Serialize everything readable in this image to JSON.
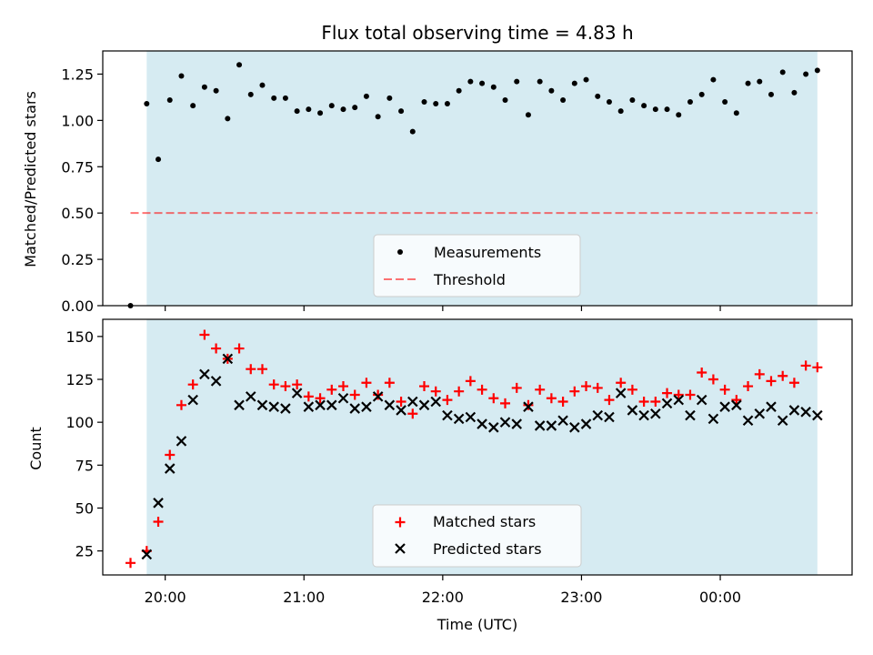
{
  "chart_data": [
    {
      "type": "scatter",
      "title": "Flux total observing time = 4.83 h",
      "xlabel": "",
      "ylabel": "Matched/Predicted stars",
      "ylim": [
        0,
        1.375
      ],
      "yticks": [
        "0.00",
        "0.25",
        "0.50",
        "0.75",
        "1.00",
        "1.25"
      ],
      "shaded_span": {
        "x_start": "19:52",
        "x_end": "00:42",
        "color": "#add8e6"
      },
      "threshold": {
        "name": "Threshold",
        "value": 0.5,
        "x_start": "19:45",
        "x_end": "00:42",
        "color": "#ff0000"
      },
      "legend": {
        "position": "lower center",
        "entries": [
          "Measurements",
          "Threshold"
        ]
      },
      "series": [
        {
          "name": "Measurements",
          "color": "#000000",
          "marker": "dot",
          "x": [
            "19:45",
            "19:52",
            "19:57",
            "20:02",
            "20:07",
            "20:12",
            "20:17",
            "20:22",
            "20:27",
            "20:32",
            "20:37",
            "20:42",
            "20:47",
            "20:52",
            "20:57",
            "21:02",
            "21:07",
            "21:12",
            "21:17",
            "21:22",
            "21:27",
            "21:32",
            "21:37",
            "21:42",
            "21:47",
            "21:52",
            "21:57",
            "22:02",
            "22:07",
            "22:12",
            "22:17",
            "22:22",
            "22:27",
            "22:32",
            "22:37",
            "22:42",
            "22:47",
            "22:52",
            "22:57",
            "23:02",
            "23:07",
            "23:12",
            "23:17",
            "23:22",
            "23:27",
            "23:32",
            "23:37",
            "23:42",
            "23:47",
            "23:52",
            "23:57",
            "00:02",
            "00:07",
            "00:12",
            "00:17",
            "00:22",
            "00:27",
            "00:32",
            "00:37",
            "00:42"
          ],
          "y": [
            0.0,
            1.09,
            0.79,
            1.11,
            1.24,
            1.08,
            1.18,
            1.16,
            1.01,
            1.3,
            1.14,
            1.19,
            1.12,
            1.12,
            1.05,
            1.06,
            1.04,
            1.08,
            1.06,
            1.07,
            1.13,
            1.02,
            1.12,
            1.05,
            0.94,
            1.1,
            1.09,
            1.09,
            1.16,
            1.21,
            1.2,
            1.18,
            1.11,
            1.21,
            1.03,
            1.21,
            1.16,
            1.11,
            1.2,
            1.22,
            1.13,
            1.1,
            1.05,
            1.11,
            1.08,
            1.06,
            1.06,
            1.03,
            1.1,
            1.14,
            1.22,
            1.1,
            1.04,
            1.2,
            1.21,
            1.14,
            1.26,
            1.15,
            1.25,
            1.27
          ]
        }
      ]
    },
    {
      "type": "scatter",
      "title": "",
      "xlabel": "Time (UTC)",
      "ylabel": "Count",
      "ylim": [
        11,
        160
      ],
      "yticks": [
        "25",
        "50",
        "75",
        "100",
        "125",
        "150"
      ],
      "xticks": [
        "20:00",
        "21:00",
        "22:00",
        "23:00",
        "00:00"
      ],
      "xlim": [
        "19:33",
        "00:57"
      ],
      "legend": {
        "position": "lower center",
        "entries": [
          "Matched stars",
          "Predicted stars"
        ]
      },
      "series": [
        {
          "name": "Matched stars",
          "color": "#ff0000",
          "marker": "plus",
          "x": [
            "19:45",
            "19:52",
            "19:57",
            "20:02",
            "20:07",
            "20:12",
            "20:17",
            "20:22",
            "20:27",
            "20:32",
            "20:37",
            "20:42",
            "20:47",
            "20:52",
            "20:57",
            "21:02",
            "21:07",
            "21:12",
            "21:17",
            "21:22",
            "21:27",
            "21:32",
            "21:37",
            "21:42",
            "21:47",
            "21:52",
            "21:57",
            "22:02",
            "22:07",
            "22:12",
            "22:17",
            "22:22",
            "22:27",
            "22:32",
            "22:37",
            "22:42",
            "22:47",
            "22:52",
            "22:57",
            "23:02",
            "23:07",
            "23:12",
            "23:17",
            "23:22",
            "23:27",
            "23:32",
            "23:37",
            "23:42",
            "23:47",
            "23:52",
            "23:57",
            "00:02",
            "00:07",
            "00:12",
            "00:17",
            "00:22",
            "00:27",
            "00:32",
            "00:37",
            "00:42"
          ],
          "y": [
            18,
            25,
            42,
            81,
            110,
            122,
            151,
            143,
            137,
            143,
            131,
            131,
            122,
            121,
            122,
            115,
            114,
            119,
            121,
            116,
            123,
            116,
            123,
            112,
            105,
            121,
            118,
            113,
            118,
            124,
            119,
            114,
            111,
            120,
            110,
            119,
            114,
            112,
            118,
            121,
            120,
            113,
            123,
            119,
            112,
            112,
            117,
            116,
            116,
            129,
            125,
            119,
            113,
            121,
            128,
            124,
            127,
            123,
            133,
            132
          ]
        },
        {
          "name": "Predicted stars",
          "color": "#000000",
          "marker": "x",
          "x": [
            "19:52",
            "19:57",
            "20:02",
            "20:07",
            "20:12",
            "20:17",
            "20:22",
            "20:27",
            "20:32",
            "20:37",
            "20:42",
            "20:47",
            "20:52",
            "20:57",
            "21:02",
            "21:07",
            "21:12",
            "21:17",
            "21:22",
            "21:27",
            "21:32",
            "21:37",
            "21:42",
            "21:47",
            "21:52",
            "21:57",
            "22:02",
            "22:07",
            "22:12",
            "22:17",
            "22:22",
            "22:27",
            "22:32",
            "22:37",
            "22:42",
            "22:47",
            "22:52",
            "22:57",
            "23:02",
            "23:07",
            "23:12",
            "23:17",
            "23:22",
            "23:27",
            "23:32",
            "23:37",
            "23:42",
            "23:47",
            "23:52",
            "23:57",
            "00:02",
            "00:07",
            "00:12",
            "00:17",
            "00:22",
            "00:27",
            "00:32",
            "00:37",
            "00:42"
          ],
          "y": [
            23,
            53,
            73,
            89,
            113,
            128,
            124,
            137,
            110,
            115,
            110,
            109,
            108,
            117,
            109,
            110,
            110,
            114,
            108,
            109,
            115,
            110,
            107,
            112,
            110,
            112,
            104,
            102,
            103,
            99,
            97,
            100,
            99,
            109,
            98,
            98,
            101,
            97,
            99,
            104,
            103,
            117,
            107,
            104,
            105,
            111,
            113,
            104,
            113,
            102,
            109,
            110,
            101,
            105,
            109,
            101,
            107,
            106,
            104
          ]
        }
      ]
    }
  ]
}
